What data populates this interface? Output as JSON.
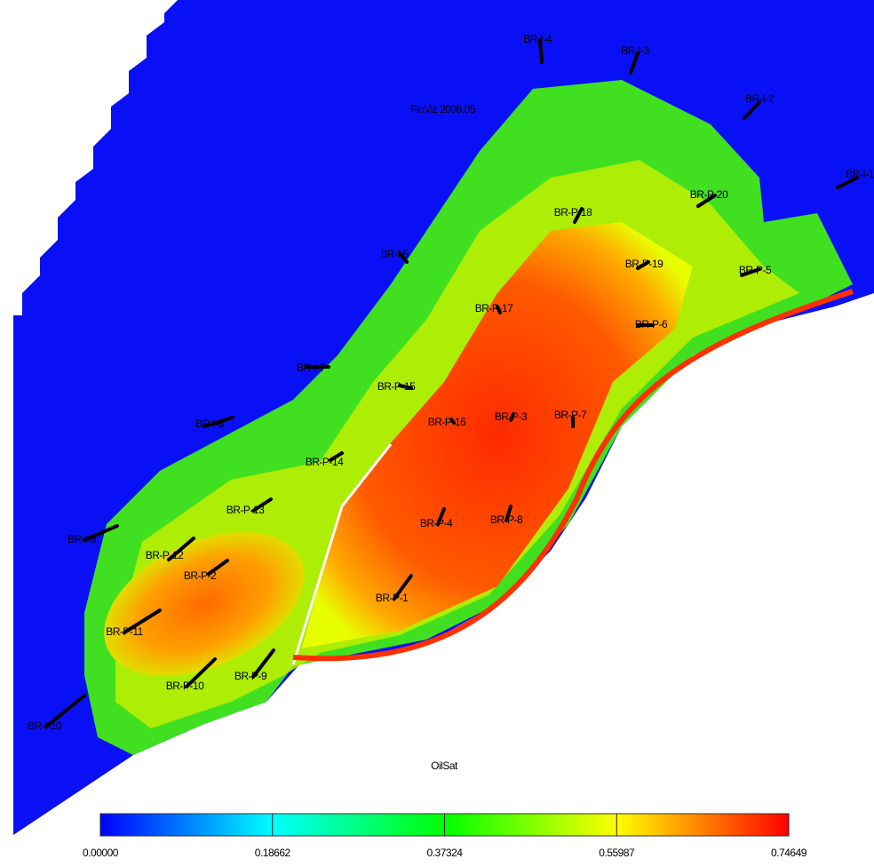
{
  "annotation": "FloViz 2006.05",
  "wells": [
    {
      "label": "BR-I-4"
    },
    {
      "label": "BR-I-3"
    },
    {
      "label": "BR-I-2"
    },
    {
      "label": "BR-I-1"
    },
    {
      "label": "BR-P-18"
    },
    {
      "label": "BR-P-20"
    },
    {
      "label": "BR-P-19"
    },
    {
      "label": "BR-P-5"
    },
    {
      "label": "BR-I-5"
    },
    {
      "label": "BR-P-17"
    },
    {
      "label": "BR-P-6"
    },
    {
      "label": "BR-I-7"
    },
    {
      "label": "BR-P-15"
    },
    {
      "label": "BR-P-16"
    },
    {
      "label": "BR-P-3"
    },
    {
      "label": "BR-P-7"
    },
    {
      "label": "BR-I-8"
    },
    {
      "label": "BR-P-14"
    },
    {
      "label": "BR-P-13"
    },
    {
      "label": "BR-I-9"
    },
    {
      "label": "BR-P-12"
    },
    {
      "label": "BR-P-2"
    },
    {
      "label": "BR-P-4"
    },
    {
      "label": "BR-P-8"
    },
    {
      "label": "BR-P-1"
    },
    {
      "label": "BR-P-11"
    },
    {
      "label": "BR-P-10"
    },
    {
      "label": "BR-P-9"
    },
    {
      "label": "BR-I-10"
    }
  ],
  "legend": {
    "title": "OilSat",
    "range": [
      0,
      0.74649
    ],
    "ticks": [
      {
        "value": 0,
        "label": "0.00000"
      },
      {
        "value": 0.18662,
        "label": "0.18662"
      },
      {
        "value": 0.37324,
        "label": "0.37324"
      },
      {
        "value": 0.55987,
        "label": "0.55987"
      },
      {
        "value": 0.74649,
        "label": "0.74649"
      }
    ]
  }
}
